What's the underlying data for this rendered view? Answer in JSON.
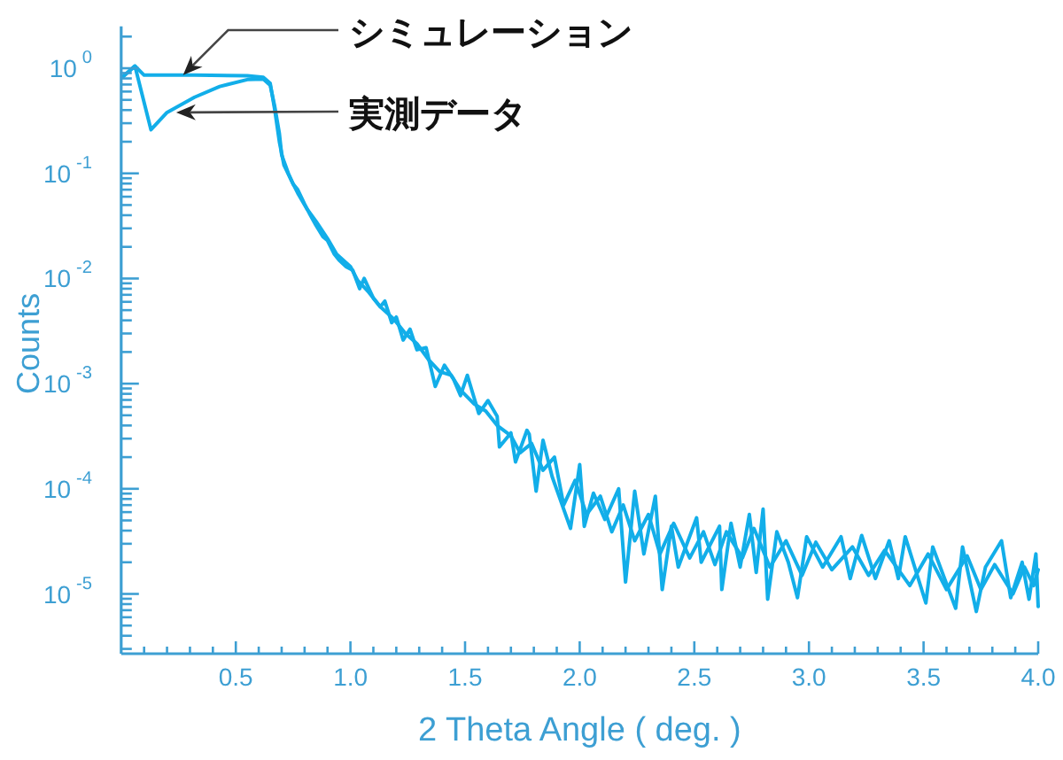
{
  "chart_data": {
    "type": "line",
    "xlabel": "2 Theta Angle ( deg. )",
    "ylabel": "Counts",
    "log": true,
    "xlim": [
      0,
      4
    ],
    "ylim": [
      2.7e-06,
      2.5
    ],
    "xticks": [
      {
        "value": 0.1,
        "label": null
      },
      {
        "value": 0.2,
        "label": null
      },
      {
        "value": 0.3,
        "label": null
      },
      {
        "value": 0.4,
        "label": null
      },
      0.5,
      {
        "value": 0.6,
        "label": null
      },
      {
        "value": 0.7,
        "label": null
      },
      {
        "value": 0.8,
        "label": null
      },
      {
        "value": 0.9,
        "label": null
      },
      {
        "value": 1,
        "label": "1.0"
      },
      {
        "value": 1.1,
        "label": null
      },
      {
        "value": 1.2,
        "label": null
      },
      {
        "value": 1.3,
        "label": null
      },
      {
        "value": 1.4,
        "label": null
      },
      1.5,
      {
        "value": 1.6,
        "label": null
      },
      {
        "value": 1.7,
        "label": null
      },
      {
        "value": 1.8,
        "label": null
      },
      {
        "value": 1.9,
        "label": null
      },
      {
        "value": 2,
        "label": "2.0"
      },
      {
        "value": 2.1,
        "label": null
      },
      {
        "value": 2.2,
        "label": null
      },
      {
        "value": 2.3,
        "label": null
      },
      {
        "value": 2.4,
        "label": null
      },
      2.5,
      {
        "value": 2.6,
        "label": null
      },
      {
        "value": 2.7,
        "label": null
      },
      {
        "value": 2.8,
        "label": null
      },
      {
        "value": 2.9,
        "label": null
      },
      {
        "value": 3,
        "label": "3.0"
      },
      {
        "value": 3.1,
        "label": null
      },
      {
        "value": 3.2,
        "label": null
      },
      {
        "value": 3.3,
        "label": null
      },
      {
        "value": 3.4,
        "label": null
      },
      3.5,
      {
        "value": 3.6,
        "label": null
      },
      {
        "value": 3.7,
        "label": null
      },
      {
        "value": 3.8,
        "label": null
      },
      {
        "value": 3.9,
        "label": null
      },
      {
        "value": 4,
        "label": "4.0"
      }
    ],
    "yticks": [
      {
        "value": 2,
        "label": null
      },
      {
        "value": 1,
        "label": "10$^{0}$"
      },
      {
        "value": 0.9,
        "label": null
      },
      {
        "value": 0.8,
        "label": null
      },
      {
        "value": 0.7,
        "label": null
      },
      {
        "value": 0.6,
        "label": null
      },
      {
        "value": 0.5,
        "label": null
      },
      {
        "value": 0.4,
        "label": null
      },
      {
        "value": 0.3,
        "label": null
      },
      {
        "value": 0.2,
        "label": null
      },
      {
        "value": 0.1,
        "label": "10$^{-1}$"
      },
      {
        "value": 0.09,
        "label": null
      },
      {
        "value": 0.08,
        "label": null
      },
      {
        "value": 0.07,
        "label": null
      },
      {
        "value": 0.06,
        "label": null
      },
      {
        "value": 0.05,
        "label": null
      },
      {
        "value": 0.04,
        "label": null
      },
      {
        "value": 0.03,
        "label": null
      },
      {
        "value": 0.02,
        "label": null
      },
      {
        "value": 0.01,
        "label": "10$^{-2}$"
      },
      {
        "value": 0.009,
        "label": null
      },
      {
        "value": 0.008,
        "label": null
      },
      {
        "value": 0.007,
        "label": null
      },
      {
        "value": 0.006,
        "label": null
      },
      {
        "value": 0.005,
        "label": null
      },
      {
        "value": 0.004,
        "label": null
      },
      {
        "value": 0.003,
        "label": null
      },
      {
        "value": 0.002,
        "label": null
      },
      {
        "value": 0.001,
        "label": "10$^{-3}$"
      },
      {
        "value": 0.0009,
        "label": null
      },
      {
        "value": 0.0008,
        "label": null
      },
      {
        "value": 0.0007,
        "label": null
      },
      {
        "value": 0.0006,
        "label": null
      },
      {
        "value": 0.0005,
        "label": null
      },
      {
        "value": 0.0004,
        "label": null
      },
      {
        "value": 0.0003,
        "label": null
      },
      {
        "value": 0.0002,
        "label": null
      },
      {
        "value": 0.0001,
        "label": "10$^{-4}$"
      },
      {
        "value": 9e-05,
        "label": null
      },
      {
        "value": 8e-05,
        "label": null
      },
      {
        "value": 7e-05,
        "label": null
      },
      {
        "value": 6e-05,
        "label": null
      },
      {
        "value": 5e-05,
        "label": null
      },
      {
        "value": 4e-05,
        "label": null
      },
      {
        "value": 3e-05,
        "label": null
      },
      {
        "value": 2e-05,
        "label": null
      },
      {
        "value": 1e-05,
        "label": "10$^{-5}$"
      },
      {
        "value": 9e-06,
        "label": null
      },
      {
        "value": 8e-06,
        "label": null
      },
      {
        "value": 7e-06,
        "label": null
      },
      {
        "value": 6e-06,
        "label": null
      },
      {
        "value": 5e-06,
        "label": null
      },
      {
        "value": 4e-06,
        "label": null
      },
      {
        "value": 3e-06,
        "label": null
      }
    ],
    "series": [
      {
        "color": "#12aee9",
        "x": [
          0.01,
          0.06,
          0.1,
          0.32,
          0.55,
          0.62,
          0.65,
          0.67,
          0.69,
          0.71,
          0.74,
          0.77,
          0.81,
          0.85,
          0.9,
          0.94,
          1.0,
          1.03,
          1.08,
          1.13,
          1.19,
          1.24,
          1.29,
          1.34,
          1.39,
          1.44,
          1.48,
          1.54,
          1.59,
          1.64,
          1.7,
          1.74,
          1.79,
          1.84,
          1.89,
          1.93,
          1.98,
          2.03,
          2.09,
          2.14,
          2.19,
          2.24,
          2.3,
          2.35,
          2.41,
          2.48,
          2.54,
          2.59,
          2.64,
          2.71,
          2.76,
          2.83,
          2.9,
          2.97,
          3.03,
          3.1,
          3.19,
          3.26,
          3.33,
          3.44,
          3.52,
          3.6,
          3.69,
          3.75,
          3.81,
          3.89,
          3.94,
          3.98,
          4.0
        ],
        "values": [
          0.84,
          1.05,
          0.86,
          0.86,
          0.85,
          0.82,
          0.72,
          0.4,
          0.2,
          0.12,
          0.088,
          0.065,
          0.046,
          0.035,
          0.024,
          0.017,
          0.013,
          0.0097,
          0.0074,
          0.0054,
          0.0041,
          0.003,
          0.0024,
          0.0017,
          0.0013,
          0.0012,
          0.00087,
          0.00064,
          0.00055,
          0.0004,
          0.00032,
          0.00022,
          0.00027,
          0.00015,
          0.0002,
          7e-05,
          0.00012,
          5.7e-05,
          8.5e-05,
          3.9e-05,
          7e-05,
          3.2e-05,
          5.7e-05,
          2.4e-05,
          4.7e-05,
          2.2e-05,
          3.9e-05,
          1.9e-05,
          3.9e-05,
          2.2e-05,
          4.2e-05,
          1.8e-05,
          3.2e-05,
          1.5e-05,
          3.1e-05,
          1.7e-05,
          2.8e-05,
          1.5e-05,
          2.6e-05,
          1.2e-05,
          2.4e-05,
          1.1e-05,
          2.3e-05,
          1.1e-05,
          1.9e-05,
          1e-05,
          1.8e-05,
          1.2e-05,
          1.7e-05
        ]
      },
      {
        "color": "#12aee9",
        "x": [
          0.01,
          0.06,
          0.13,
          0.2,
          0.32,
          0.43,
          0.55,
          0.62,
          0.65,
          0.67,
          0.69,
          0.7,
          0.73,
          0.75,
          0.77,
          0.8,
          0.82,
          0.85,
          0.88,
          0.9,
          0.93,
          0.95,
          0.98,
          1.01,
          1.04,
          1.06,
          1.1,
          1.13,
          1.15,
          1.18,
          1.2,
          1.23,
          1.26,
          1.29,
          1.33,
          1.37,
          1.41,
          1.45,
          1.48,
          1.51,
          1.56,
          1.6,
          1.64,
          1.65,
          1.7,
          1.72,
          1.77,
          1.78,
          1.81,
          1.84,
          1.88,
          1.91,
          1.96,
          2.0,
          2.02,
          2.06,
          2.11,
          2.17,
          2.2,
          2.24,
          2.28,
          2.33,
          2.36,
          2.4,
          2.43,
          2.51,
          2.53,
          2.61,
          2.62,
          2.66,
          2.7,
          2.74,
          2.77,
          2.8,
          2.82,
          2.86,
          2.91,
          2.95,
          2.99,
          3.06,
          3.14,
          3.18,
          3.23,
          3.29,
          3.35,
          3.39,
          3.42,
          3.51,
          3.54,
          3.64,
          3.67,
          3.73,
          3.77,
          3.84,
          3.88,
          3.93,
          3.96,
          3.99,
          4.0
        ],
        "values": [
          0.84,
          1.05,
          0.26,
          0.38,
          0.53,
          0.67,
          0.78,
          0.79,
          0.69,
          0.43,
          0.24,
          0.15,
          0.099,
          0.079,
          0.07,
          0.051,
          0.042,
          0.032,
          0.025,
          0.023,
          0.017,
          0.015,
          0.013,
          0.012,
          0.008,
          0.01,
          0.0065,
          0.0054,
          0.0061,
          0.0038,
          0.0043,
          0.0026,
          0.0033,
          0.0021,
          0.0022,
          0.00094,
          0.0015,
          0.0011,
          0.00077,
          0.0012,
          0.00052,
          0.00069,
          0.00049,
          0.00025,
          0.00034,
          0.00018,
          0.00036,
          0.00033,
          9.5e-05,
          0.00029,
          0.00013,
          8.5e-05,
          4.2e-05,
          0.00017,
          4.4e-05,
          9.1e-05,
          5.1e-05,
          0.0001,
          1.3e-05,
          9.5e-05,
          2.4e-05,
          8.5e-05,
          1.1e-05,
          4.4e-05,
          1.8e-05,
          5.3e-05,
          2e-05,
          4.4e-05,
          1.1e-05,
          4.7e-05,
          1.8e-05,
          5.7e-05,
          1.6e-05,
          6.4e-05,
          8.9e-06,
          3.9e-05,
          2e-05,
          9.2e-06,
          3.5e-05,
          1.8e-05,
          3.5e-05,
          1.4e-05,
          3.6e-05,
          1.4e-05,
          3.2e-05,
          1.4e-05,
          3.5e-05,
          8.2e-06,
          2.8e-05,
          7.3e-06,
          2.8e-05,
          6.8e-06,
          1.8e-05,
          3.2e-05,
          9.2e-06,
          2e-05,
          8.9e-06,
          2.4e-05,
          7.6e-06
        ]
      }
    ],
    "annotations": [
      {
        "text": "シミュレーション",
        "x": 0.27,
        "y": 0.86
      },
      {
        "text": "実測データ",
        "x": 0.24,
        "y": 0.38
      }
    ]
  }
}
